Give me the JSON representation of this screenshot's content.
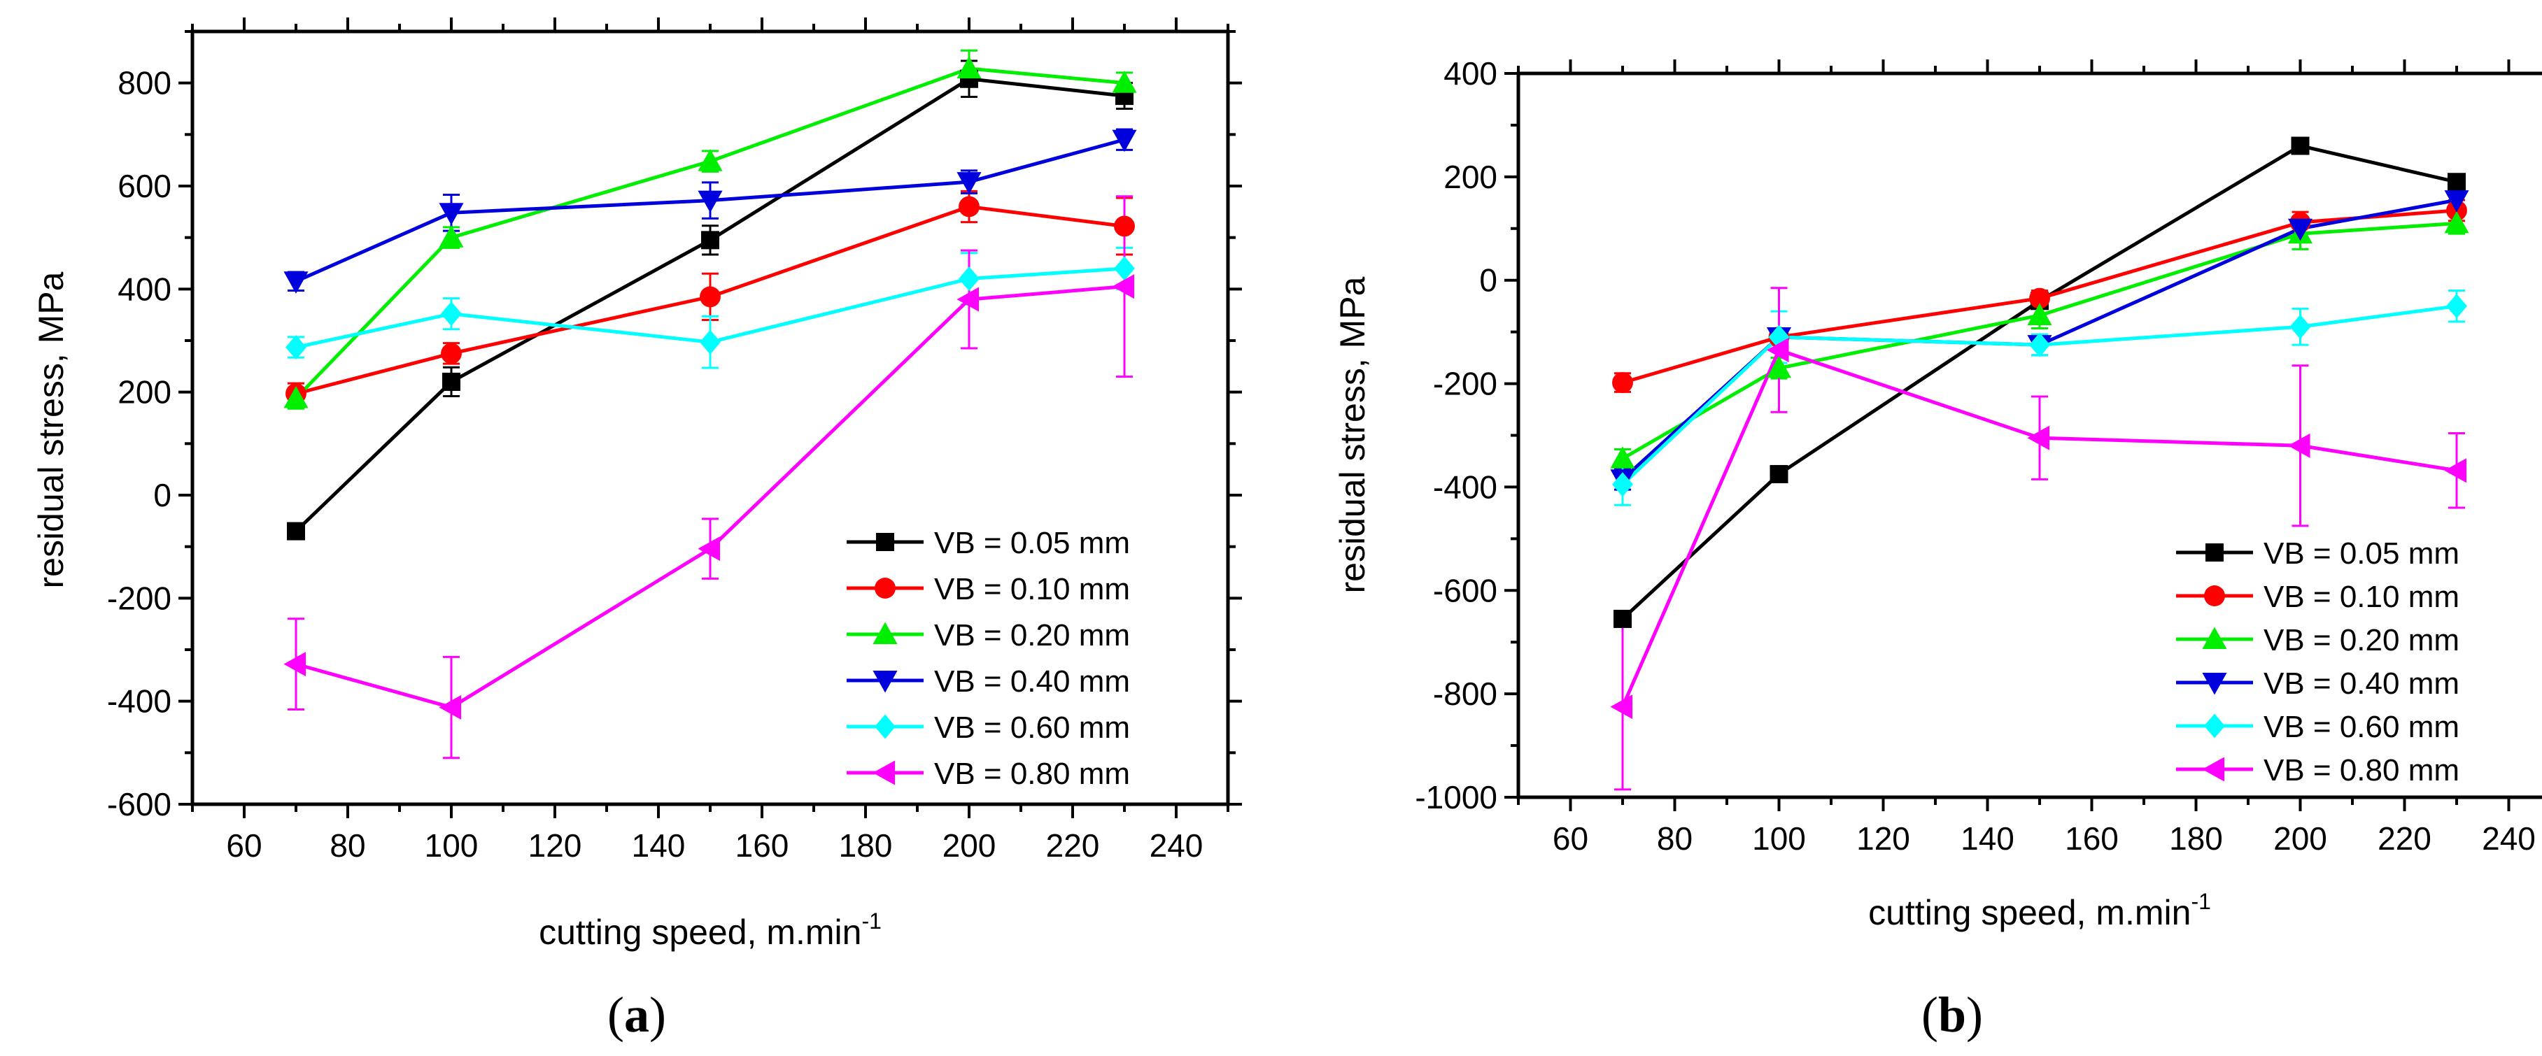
{
  "figure": {
    "panel_labels": [
      {
        "open": "(",
        "letter": "a",
        "close": ")"
      },
      {
        "open": "(",
        "letter": "b",
        "close": ")"
      }
    ]
  },
  "chart_data": [
    {
      "type": "line",
      "panel": "a",
      "xlabel": "cutting speed, m.min",
      "xlabel_sup": "-1",
      "ylabel": "residual stress, MPa",
      "xlim": [
        50,
        250
      ],
      "ylim": [
        -600,
        900
      ],
      "xticks": [
        60,
        80,
        100,
        120,
        140,
        160,
        180,
        200,
        220,
        240
      ],
      "yticks": [
        -600,
        -400,
        -200,
        0,
        200,
        400,
        600,
        800
      ],
      "legend_position": "bottom-right",
      "x": [
        70,
        100,
        150,
        200,
        230
      ],
      "series": [
        {
          "name": "VB = 0.05 mm",
          "color": "#000000",
          "marker": "square",
          "values": [
            -70,
            220,
            495,
            808,
            775
          ],
          "errors": [
            15,
            28,
            28,
            35,
            25
          ]
        },
        {
          "name": "VB = 0.10 mm",
          "color": "#ff0000",
          "marker": "circle",
          "values": [
            197,
            275,
            385,
            560,
            522
          ],
          "errors": [
            20,
            20,
            45,
            30,
            55
          ]
        },
        {
          "name": "VB = 0.20 mm",
          "color": "#00ee00",
          "marker": "triangle-up",
          "values": [
            188,
            500,
            648,
            828,
            800
          ],
          "errors": [
            20,
            20,
            20,
            35,
            20
          ]
        },
        {
          "name": "VB = 0.40 mm",
          "color": "#0000dd",
          "marker": "triangle-down",
          "values": [
            415,
            548,
            572,
            608,
            690
          ],
          "errors": [
            18,
            35,
            35,
            22,
            20
          ]
        },
        {
          "name": "VB = 0.60 mm",
          "color": "#00ffff",
          "marker": "diamond",
          "values": [
            287,
            352,
            297,
            420,
            440
          ],
          "errors": [
            20,
            30,
            50,
            50,
            40
          ]
        },
        {
          "name": "VB = 0.80 mm",
          "color": "#ff00ff",
          "marker": "triangle-left",
          "values": [
            -328,
            -412,
            -104,
            380,
            405
          ],
          "errors": [
            88,
            98,
            58,
            95,
            175
          ]
        }
      ]
    },
    {
      "type": "line",
      "panel": "b",
      "xlabel": "cutting speed, m.min",
      "xlabel_sup": "-1",
      "ylabel": "residual stress, MPa",
      "xlim": [
        50,
        250
      ],
      "ylim": [
        -1000,
        400
      ],
      "xticks": [
        60,
        80,
        100,
        120,
        140,
        160,
        180,
        200,
        220,
        240
      ],
      "yticks": [
        -1000,
        -800,
        -600,
        -400,
        -200,
        0,
        200,
        400
      ],
      "legend_position": "bottom-right",
      "x": [
        70,
        100,
        150,
        200,
        230
      ],
      "series": [
        {
          "name": "VB = 0.05 mm",
          "color": "#000000",
          "marker": "square",
          "values": [
            -655,
            -375,
            -40,
            260,
            190
          ],
          "errors": [
            12,
            15,
            15,
            8,
            15
          ]
        },
        {
          "name": "VB = 0.10 mm",
          "color": "#ff0000",
          "marker": "circle",
          "values": [
            -198,
            -110,
            -35,
            112,
            135
          ],
          "errors": [
            18,
            15,
            15,
            20,
            20
          ]
        },
        {
          "name": "VB = 0.20 mm",
          "color": "#00ee00",
          "marker": "triangle-up",
          "values": [
            -345,
            -170,
            -68,
            90,
            110
          ],
          "errors": [
            18,
            20,
            25,
            30,
            20
          ]
        },
        {
          "name": "VB = 0.40 mm",
          "color": "#0000dd",
          "marker": "triangle-down",
          "values": [
            -385,
            -110,
            -125,
            100,
            155
          ],
          "errors": [
            20,
            15,
            20,
            20,
            20
          ]
        },
        {
          "name": "VB = 0.60 mm",
          "color": "#00ffff",
          "marker": "diamond",
          "values": [
            -395,
            -110,
            -125,
            -90,
            -50
          ],
          "errors": [
            40,
            50,
            20,
            35,
            30
          ]
        },
        {
          "name": "VB = 0.80 mm",
          "color": "#ff00ff",
          "marker": "triangle-left",
          "values": [
            -825,
            -135,
            -305,
            -320,
            -368
          ],
          "errors": [
            160,
            120,
            80,
            155,
            72
          ]
        }
      ]
    }
  ]
}
